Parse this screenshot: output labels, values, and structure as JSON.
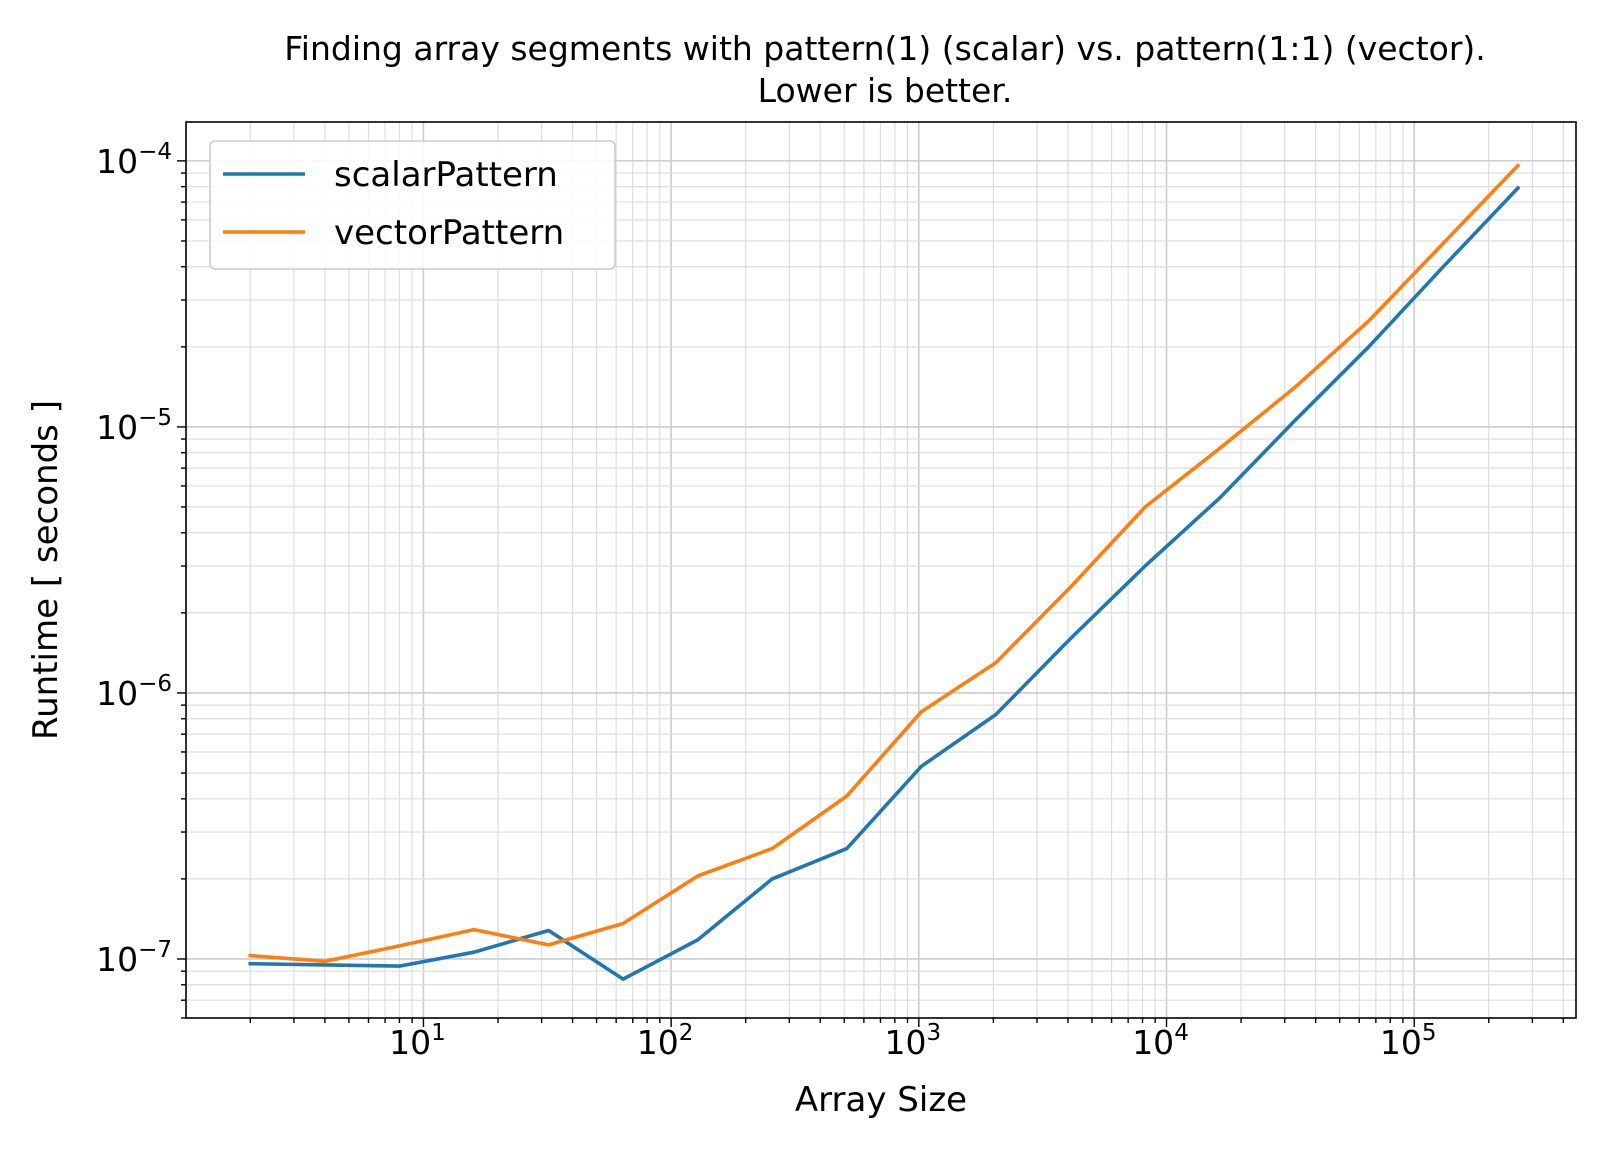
{
  "chart_data": {
    "type": "line",
    "title": "Finding array segments with pattern(1) (scalar) vs. pattern(1:1) (vector).",
    "subtitle": "Lower is better.",
    "xlabel": "Array Size",
    "ylabel": "Runtime [ seconds ]",
    "xscale": "log",
    "yscale": "log",
    "xlim": [
      1.1,
      450000
    ],
    "ylim": [
      6e-08,
      0.00014
    ],
    "grid": "both major and minor",
    "legend_position": "top-left",
    "x_ticks": [
      {
        "base": "10",
        "exp": "1"
      },
      {
        "base": "10",
        "exp": "2"
      },
      {
        "base": "10",
        "exp": "3"
      },
      {
        "base": "10",
        "exp": "4"
      },
      {
        "base": "10",
        "exp": "5"
      }
    ],
    "y_ticks": [
      {
        "base": "10",
        "exp": "−7"
      },
      {
        "base": "10",
        "exp": "−6"
      },
      {
        "base": "10",
        "exp": "−5"
      },
      {
        "base": "10",
        "exp": "−4"
      }
    ],
    "x": [
      2,
      4,
      8,
      16,
      32,
      64,
      128,
      256,
      512,
      1024,
      2048,
      4096,
      8192,
      16384,
      32768,
      65536,
      131072,
      262144
    ],
    "series": [
      {
        "name": "scalarPattern",
        "color": "#1f77b4",
        "values": [
          9.6e-08,
          9.5e-08,
          9.4e-08,
          1.06e-07,
          1.28e-07,
          8.4e-08,
          1.18e-07,
          2e-07,
          2.6e-07,
          5.3e-07,
          8.3e-07,
          1.6e-06,
          3e-06,
          5.4e-06,
          1.05e-05,
          2e-05,
          4e-05,
          7.9e-05
        ]
      },
      {
        "name": "vectorPattern",
        "color": "#ff7f0e",
        "values": [
          1.03e-07,
          9.8e-08,
          1.12e-07,
          1.29e-07,
          1.13e-07,
          1.36e-07,
          2.05e-07,
          2.6e-07,
          4.1e-07,
          8.5e-07,
          1.3e-06,
          2.5e-06,
          5e-06,
          8.3e-06,
          1.4e-05,
          2.5e-05,
          4.9e-05,
          9.6e-05
        ]
      }
    ]
  }
}
